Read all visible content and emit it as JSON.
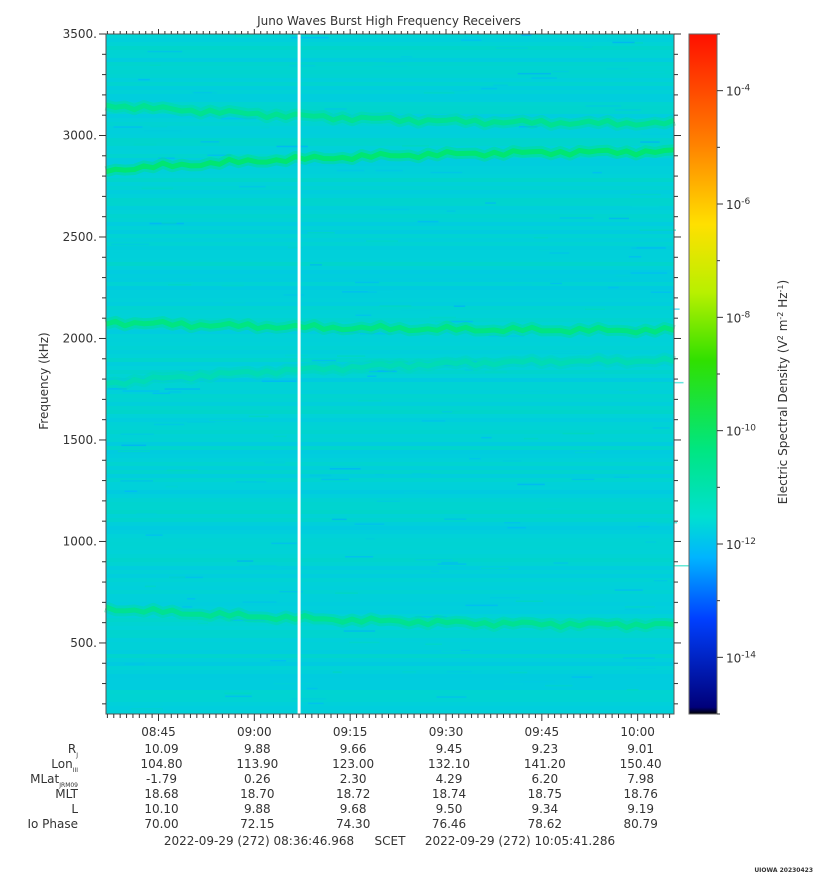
{
  "chart_data": {
    "type": "heatmap",
    "title": "Juno Waves Burst High Frequency Receivers",
    "ylabel": "Frequency (kHz)",
    "ylim": [
      150,
      3500
    ],
    "y_ticks": [
      {
        "value": 3500,
        "label": "3500."
      },
      {
        "value": 3000,
        "label": "3000."
      },
      {
        "value": 2500,
        "label": "2500."
      },
      {
        "value": 2000,
        "label": "2000."
      },
      {
        "value": 1500,
        "label": "1500."
      },
      {
        "value": 1000,
        "label": "1000."
      },
      {
        "value": 500,
        "label": "500."
      }
    ],
    "x_time_range": [
      "08:36:46.968",
      "10:05:41.286"
    ],
    "x_ticks": [
      "08:45",
      "09:00",
      "09:15",
      "09:30",
      "09:45",
      "10:00"
    ],
    "colorbar": {
      "label": "Electric Spectral Density (V² m⁻² Hz⁻¹)",
      "scale": "log",
      "range_exp": [
        -15,
        -3
      ],
      "ticks": [
        {
          "exp": -4,
          "base": "10",
          "sup": "-4"
        },
        {
          "exp": -6,
          "base": "10",
          "sup": "-6"
        },
        {
          "exp": -8,
          "base": "10",
          "sup": "-8"
        },
        {
          "exp": -10,
          "base": "10",
          "sup": "-10"
        },
        {
          "exp": -12,
          "base": "10",
          "sup": "-12"
        },
        {
          "exp": -14,
          "base": "10",
          "sup": "-14"
        }
      ],
      "colors": [
        "#00008b",
        "#0040ff",
        "#00c8ff",
        "#00ff80",
        "#40ff00",
        "#ffff00",
        "#ff8000",
        "#ff0000"
      ]
    },
    "background_level_exp": -11.5,
    "emission_bands": [
      {
        "freq_start": 3150,
        "freq_end": 3060,
        "level_exp": -10.7
      },
      {
        "freq_start": 2830,
        "freq_end": 2920,
        "level_exp": -10.3
      },
      {
        "freq_start": 2080,
        "freq_end": 2040,
        "level_exp": -10.5
      },
      {
        "freq_start": 1780,
        "freq_end": 1890,
        "level_exp": -11.1
      },
      {
        "freq_start": 670,
        "freq_end": 590,
        "level_exp": -10.7
      }
    ],
    "data_gap_time": "09:07"
  },
  "ephemeris": {
    "rows": [
      {
        "label": "R",
        "sub": "J",
        "values": [
          "10.09",
          "9.88",
          "9.66",
          "9.45",
          "9.23",
          "9.01"
        ]
      },
      {
        "label": "Lon",
        "sub": "III",
        "values": [
          "104.80",
          "113.90",
          "123.00",
          "132.10",
          "141.20",
          "150.40"
        ]
      },
      {
        "label": "MLat",
        "sub": "JRM09",
        "values": [
          "-1.79",
          "0.26",
          "2.30",
          "4.29",
          "6.20",
          "7.98"
        ]
      },
      {
        "label": "MLT",
        "sub": "",
        "values": [
          "18.68",
          "18.70",
          "18.72",
          "18.74",
          "18.75",
          "18.76"
        ]
      },
      {
        "label": "L",
        "sub": "",
        "values": [
          "10.10",
          "9.88",
          "9.68",
          "9.50",
          "9.34",
          "9.19"
        ]
      },
      {
        "label": "Io Phase",
        "sub": "",
        "values": [
          "70.00",
          "72.15",
          "74.30",
          "76.46",
          "78.62",
          "80.79"
        ]
      }
    ]
  },
  "time_span": {
    "start": "2022-09-29 (272) 08:36:46.968",
    "scet": "SCET",
    "end": "2022-09-29 (272) 10:05:41.286"
  },
  "credit": "UIOWA 20230423"
}
